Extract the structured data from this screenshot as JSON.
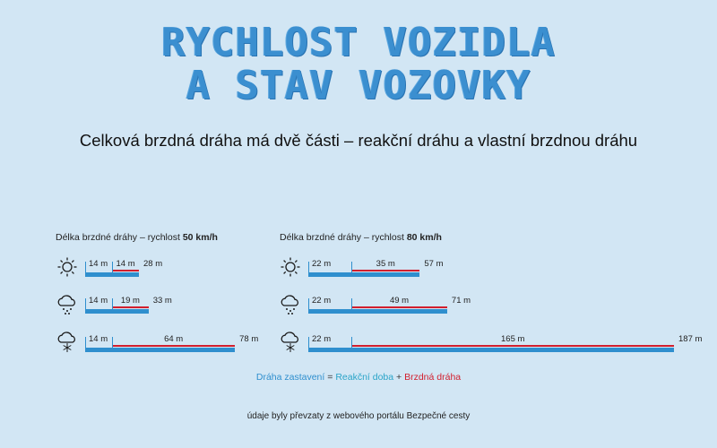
{
  "title_line1": "RYCHLOST VOZIDLA",
  "title_line2": "A STAV VOZOVKY",
  "subtitle": "Celková brzdná dráha má dvě části – reakční dráhu a vlastní brzdnou dráhu",
  "legend": {
    "stop": "Dráha zastavení",
    "eq": "=",
    "reaction": "Reakční doba",
    "plus": "+",
    "braking": "Brzdná dráha"
  },
  "source": "údaje byly převzaty z webového portálu Bezpečné cesty",
  "colors": {
    "background": "#d2e6f4",
    "title": "#3b8fd0",
    "reaction": "#2f8fce",
    "braking": "#d21f2e"
  },
  "chart_data": [
    {
      "type": "bar",
      "title_prefix": "Délka brzdné dráhy – rychlost",
      "title_speed": "50 km/h",
      "unit": "m",
      "categories": [
        "sun-icon",
        "rain-icon",
        "snow-icon"
      ],
      "series": [
        {
          "name": "Reakční doba",
          "values": [
            14,
            14,
            14
          ]
        },
        {
          "name": "Brzdná dráha",
          "values": [
            14,
            19,
            64
          ]
        }
      ],
      "reaction_labels": [
        "14 m",
        "14 m",
        "14 m"
      ],
      "braking_labels": [
        "14 m",
        "19 m",
        "64 m"
      ],
      "total_labels": [
        "28 m",
        "33 m",
        "78 m"
      ],
      "totals": [
        28,
        33,
        78
      ]
    },
    {
      "type": "bar",
      "title_prefix": "Délka brzdné dráhy – rychlost",
      "title_speed": "80 km/h",
      "unit": "m",
      "categories": [
        "sun-icon",
        "rain-icon",
        "snow-icon"
      ],
      "series": [
        {
          "name": "Reakční doba",
          "values": [
            22,
            22,
            22
          ]
        },
        {
          "name": "Brzdná dráha",
          "values": [
            35,
            49,
            165
          ]
        }
      ],
      "reaction_labels": [
        "22 m",
        "22 m",
        "22 m"
      ],
      "braking_labels": [
        "35 m",
        "49 m",
        "165 m"
      ],
      "total_labels": [
        "57 m",
        "71 m",
        "187 m"
      ],
      "totals": [
        57,
        71,
        187
      ]
    }
  ]
}
